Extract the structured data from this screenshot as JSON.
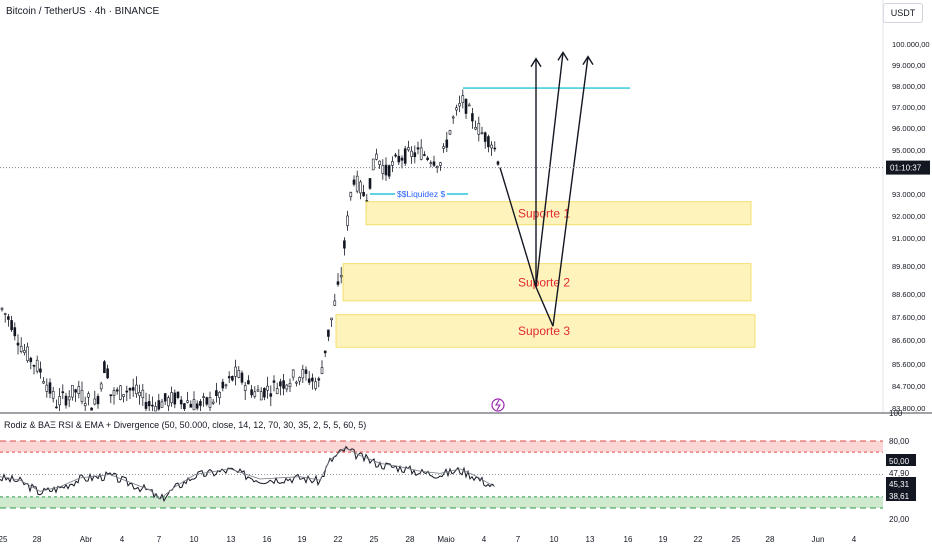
{
  "header": {
    "title": "Bitcoin / TetherUS · 4h · BINANCE",
    "currency": "USDT"
  },
  "chart_data": {
    "type": "candlestick",
    "y_ticks": [
      "100.000,00",
      "99.000,00",
      "98.000,00",
      "97.000,00",
      "96.000,00",
      "95.000,00",
      "93.000,00",
      "92.000,00",
      "91.000,00",
      "89.800,00",
      "88.600,00",
      "87.600,00",
      "86.600,00",
      "85.600,00",
      "84.700,00",
      "83.800,00"
    ],
    "current_price_label": "01:10:37",
    "x_ticks": [
      "25",
      "28",
      "Abr",
      "4",
      "7",
      "10",
      "13",
      "16",
      "19",
      "22",
      "25",
      "28",
      "Maio",
      "4",
      "7",
      "10",
      "13",
      "16",
      "19",
      "22",
      "25",
      "28",
      "Jun",
      "4"
    ],
    "zones": [
      {
        "label": "Suporte 1",
        "low": 91600,
        "high": 92650
      },
      {
        "label": "Suporte 2",
        "low": 88300,
        "high": 89900
      },
      {
        "label": "Suporte 3",
        "low": 86300,
        "high": 87700
      }
    ],
    "liquidity": {
      "label": "$$Liquidez $",
      "price": 93000
    },
    "resistance_line": {
      "price": 97900
    },
    "current_price": 94200,
    "scenario_path": [
      {
        "x": "Maio 4",
        "y": 94200
      },
      {
        "x": "Maio 10",
        "y": 88900
      },
      {
        "x": "Maio 13",
        "y": 87200
      },
      {
        "x": "Maio 16",
        "y": 99300
      }
    ]
  },
  "indicator": {
    "title": "Rodiz & BAΞ RSI & EMA + Divergence (50, 50.000, close, 14, 12, 70, 30, 35, 2, 5, 5, 60, 5)",
    "labels": [
      "100",
      "80,00",
      "50,00",
      "47,90",
      "45,31",
      "38,61",
      "20,00"
    ],
    "overbought_zone": [
      70,
      80
    ],
    "oversold_zone": [
      20,
      30
    ],
    "current_rsi": 45.31
  },
  "colors": {
    "up": "#131722",
    "down": "#131722",
    "zone_fill": "#fdf3b8",
    "zone_border": "#f2d64b",
    "zone_text": "#e22a34",
    "liquidity_line": "#26c6da",
    "liquidity_text": "#2962ff",
    "ob_fill": "#fcd5d5",
    "os_fill": "#cfe9cf",
    "ob_line": "#e04b4b",
    "os_line": "#2e9b4a"
  },
  "icons": {
    "lightning": "lightning-icon"
  }
}
